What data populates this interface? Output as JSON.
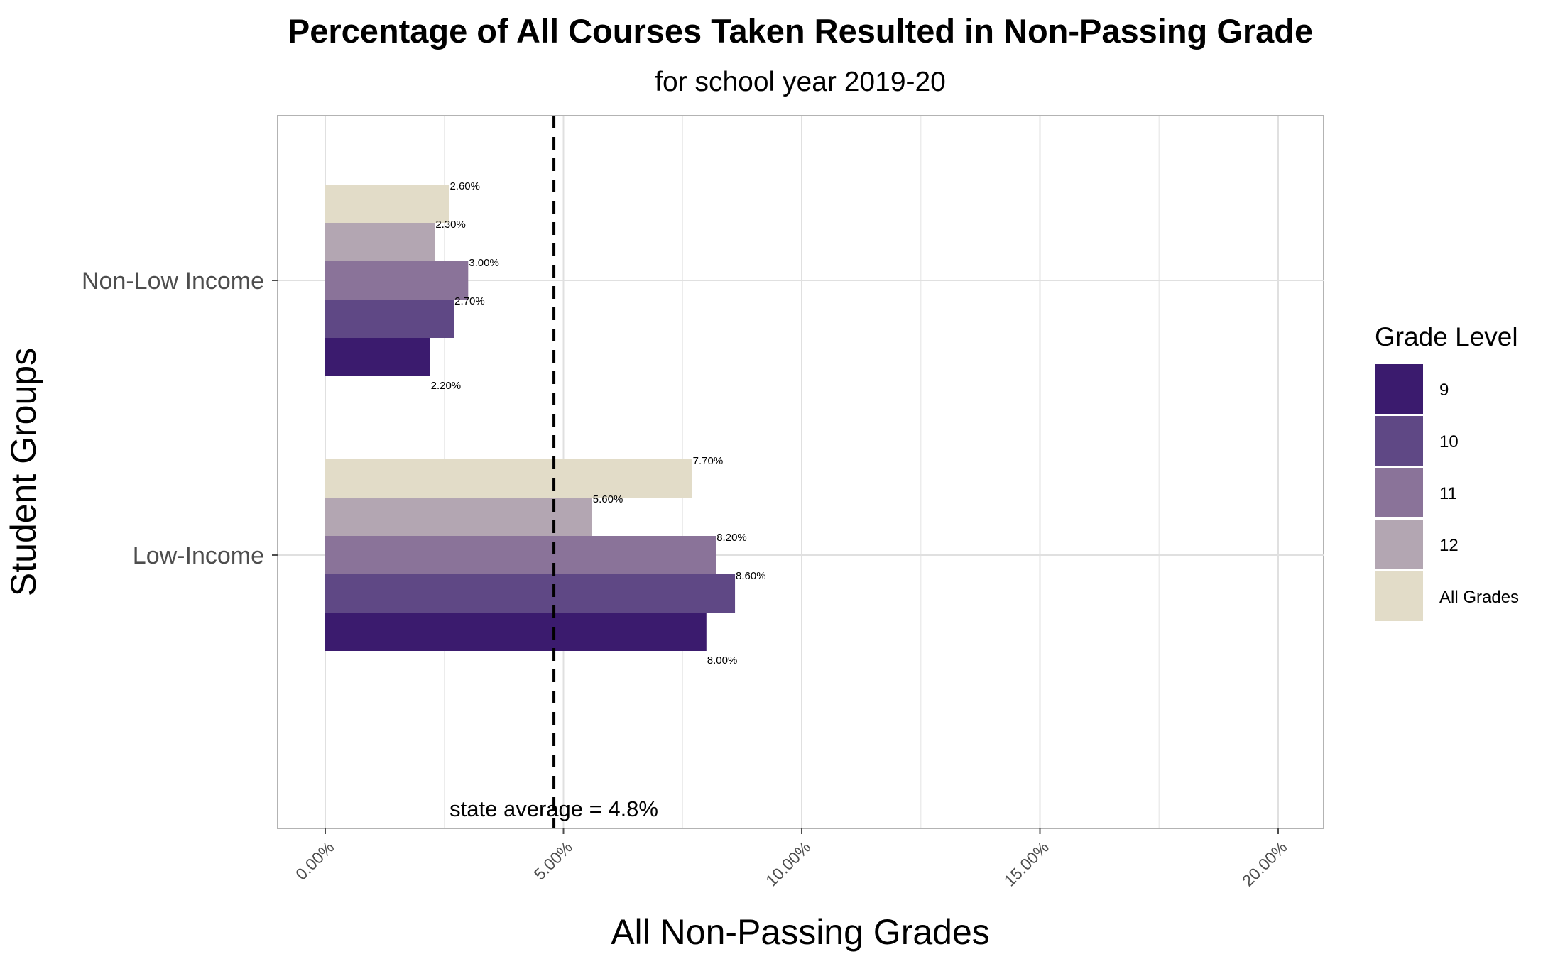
{
  "chart_data": {
    "type": "bar",
    "orientation": "horizontal",
    "title": "Percentage of All Courses Taken Resulted in Non-Passing Grade",
    "subtitle": "for school year 2019-20",
    "xlabel": "All Non-Passing Grades",
    "ylabel": "Student Groups",
    "xlim": [
      0,
      0.2
    ],
    "x_ticks": [
      {
        "value": 0,
        "label": "0.00%"
      },
      {
        "value": 0.05,
        "label": "5.00%"
      },
      {
        "value": 0.1,
        "label": "10.00%"
      },
      {
        "value": 0.15,
        "label": "15.00%"
      },
      {
        "value": 0.2,
        "label": "20.00%"
      }
    ],
    "categories": [
      "Low-Income",
      "Non-Low Income"
    ],
    "series": [
      {
        "name": "9",
        "color": "#3b1b6e",
        "values": [
          0.08,
          0.022
        ],
        "labels": [
          "8.00%",
          "2.20%"
        ]
      },
      {
        "name": "10",
        "color": "#5f4885",
        "values": [
          0.086,
          0.027
        ],
        "labels": [
          "8.60%",
          "2.70%"
        ]
      },
      {
        "name": "11",
        "color": "#8a7399",
        "values": [
          0.082,
          0.03
        ],
        "labels": [
          "8.20%",
          "3.00%"
        ]
      },
      {
        "name": "12",
        "color": "#b3a6b2",
        "values": [
          0.056,
          0.023
        ],
        "labels": [
          "5.60%",
          "2.30%"
        ]
      },
      {
        "name": "All Grades",
        "color": "#e2dcc8",
        "values": [
          0.077,
          0.026
        ],
        "labels": [
          "7.70%",
          "2.60%"
        ]
      }
    ],
    "reference_line": {
      "value": 0.048,
      "label": "state average = 4.8%",
      "style": "dashed",
      "color": "#000000"
    },
    "legend": {
      "title": "Grade Level",
      "placement": "right"
    },
    "grid": true
  }
}
